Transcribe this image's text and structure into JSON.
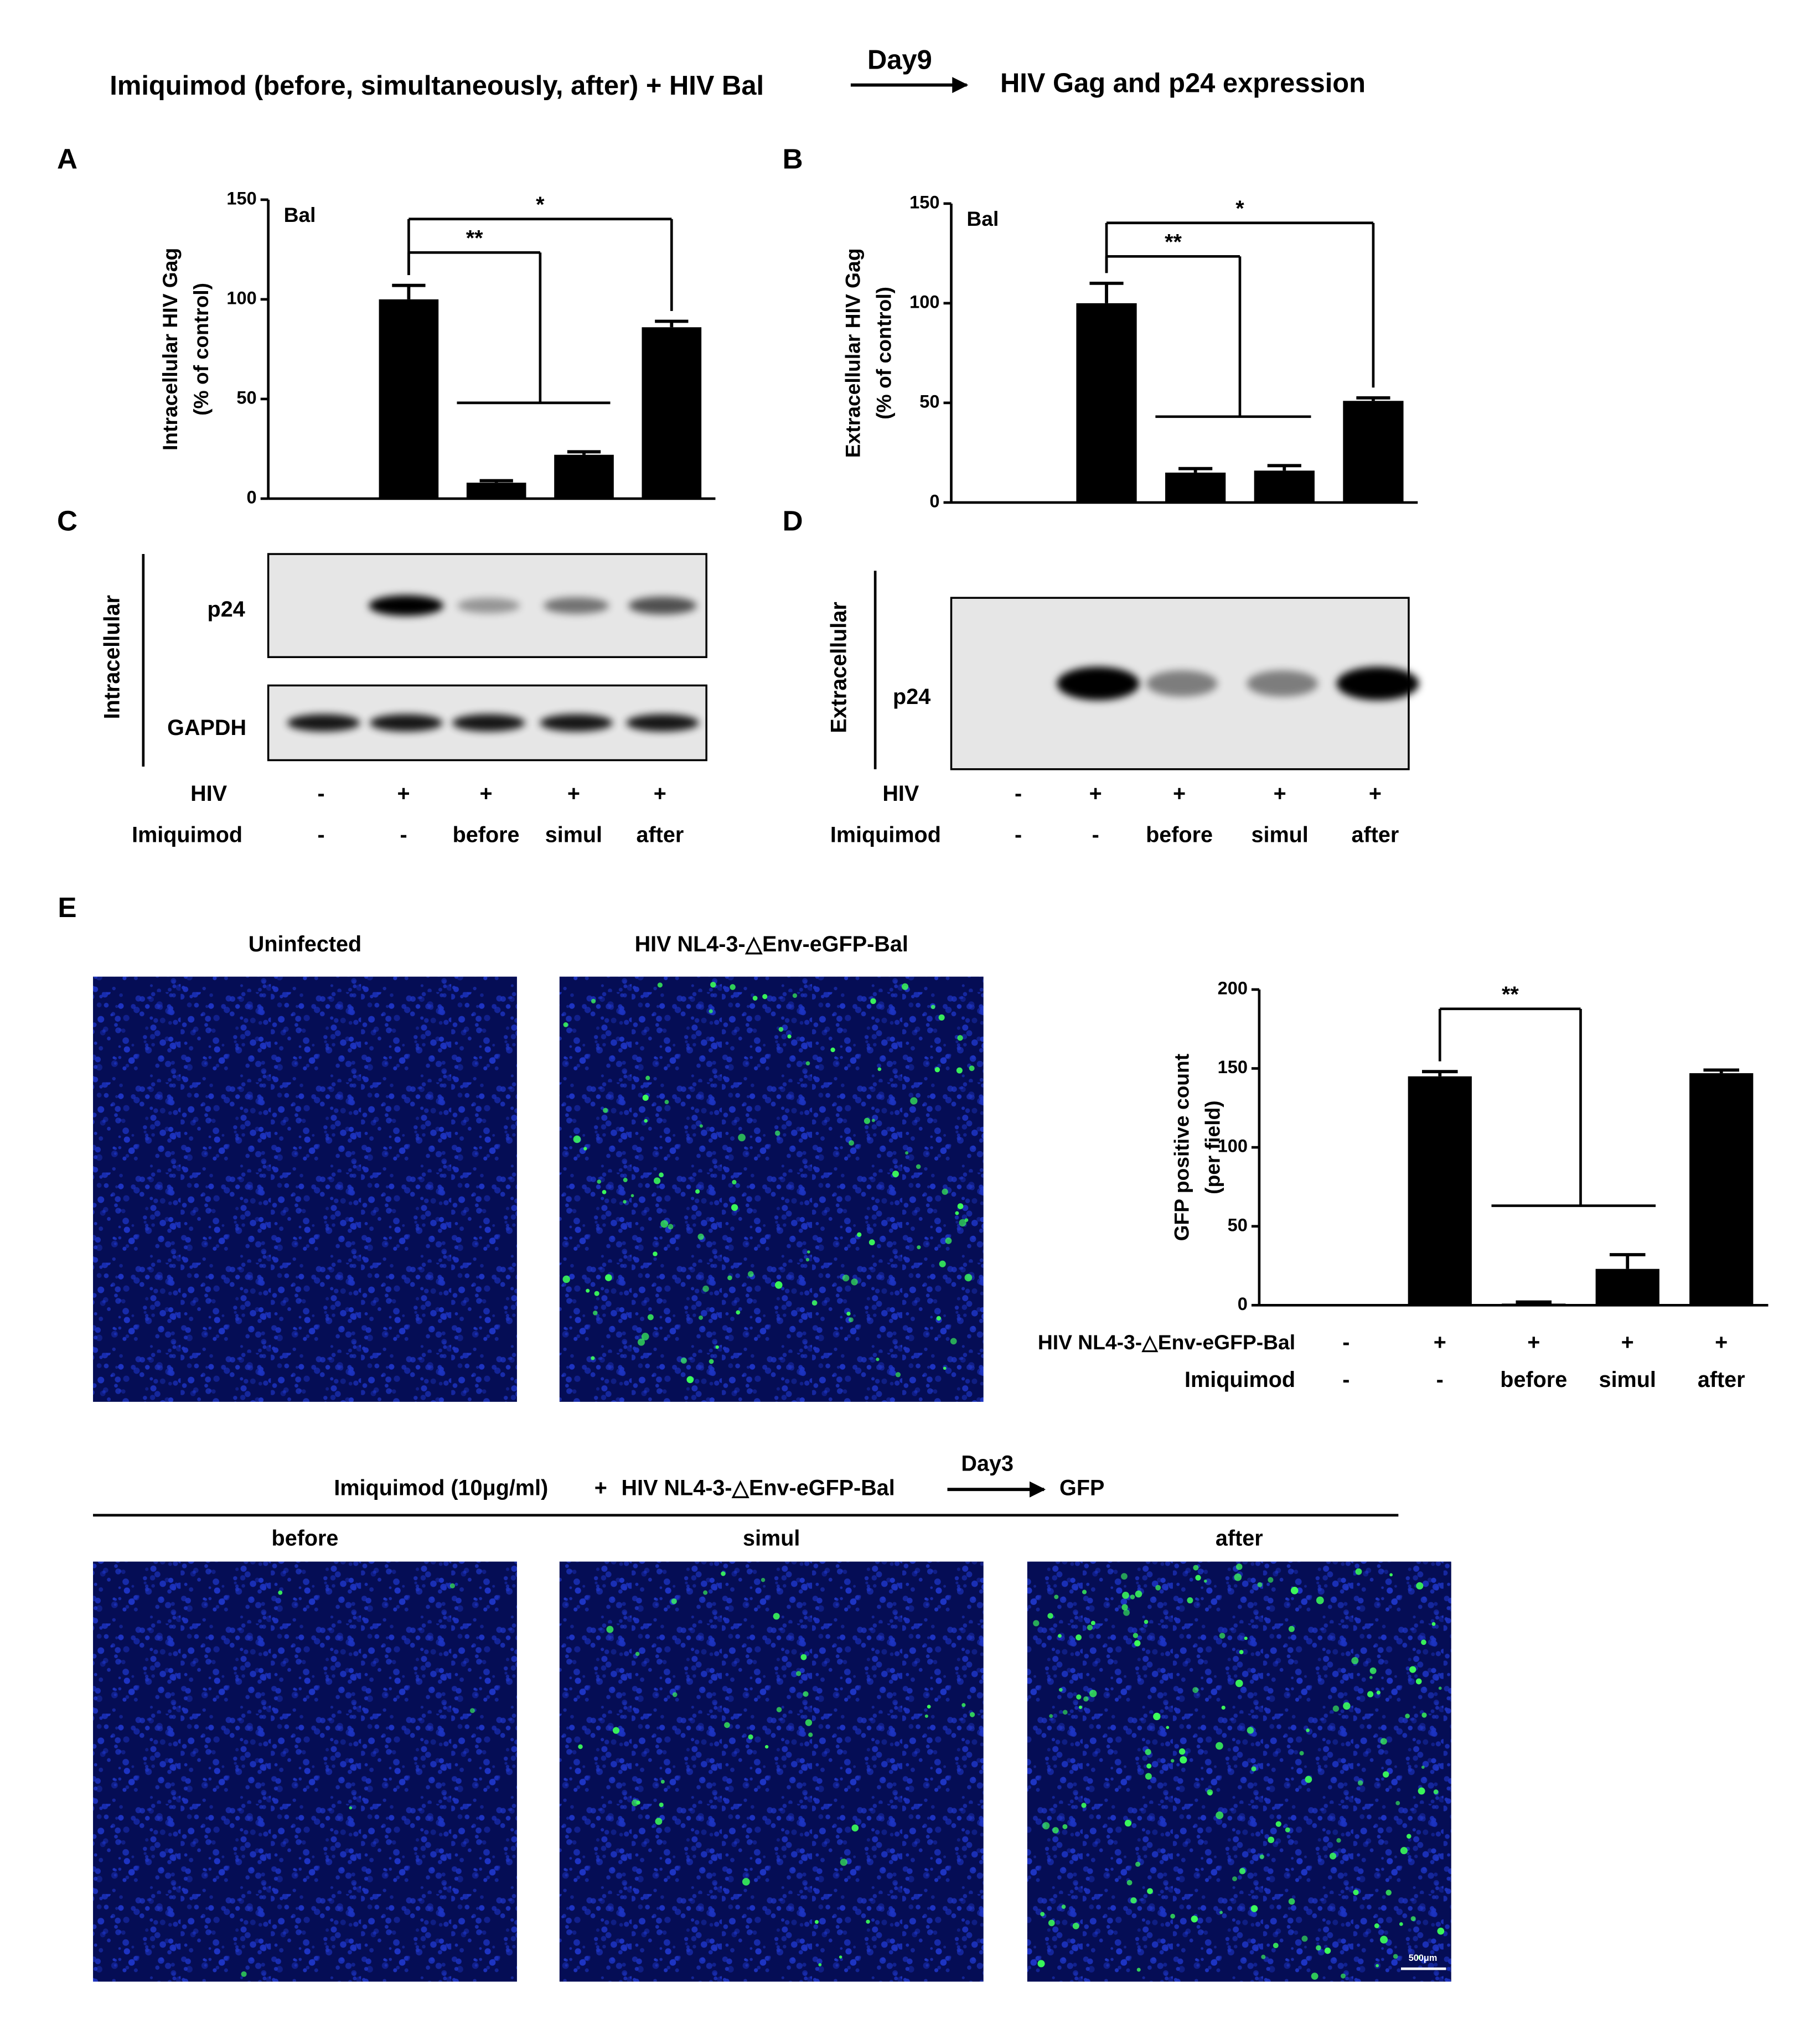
{
  "header": {
    "left": "Imiquimod (before, simultaneously, after) + HIV Bal",
    "arrow_label": "Day9",
    "right": "HIV Gag and p24 expression"
  },
  "chart_data": [
    {
      "type": "bar",
      "panel": "A",
      "inset_label": "Bal",
      "ylabel": [
        "Intracellular HIV Gag",
        "(% of control)"
      ],
      "categories": [
        null,
        null,
        null,
        null,
        null
      ],
      "values": [
        0,
        100,
        8,
        22,
        86
      ],
      "errors": [
        0,
        7,
        1,
        1.5,
        3
      ],
      "color": "#000000",
      "ylim": [
        0,
        150
      ],
      "yticks": [
        0,
        50,
        100,
        150
      ],
      "annotations": [
        {
          "text": "**",
          "from": 1,
          "to": [
            2,
            3
          ]
        },
        {
          "text": "*",
          "from": 1,
          "to": [
            4
          ]
        }
      ]
    },
    {
      "type": "bar",
      "panel": "B",
      "inset_label": "Bal",
      "ylabel": [
        "Extracellular HIV Gag",
        "(% of control)"
      ],
      "categories": [
        null,
        null,
        null,
        null,
        null
      ],
      "values": [
        0,
        100,
        15,
        16,
        51
      ],
      "errors": [
        0,
        10,
        2,
        2.5,
        1.5
      ],
      "color": "#000000",
      "ylim": [
        0,
        150
      ],
      "yticks": [
        0,
        50,
        100,
        150
      ],
      "annotations": [
        {
          "text": "**",
          "from": 1,
          "to": [
            2,
            3
          ]
        },
        {
          "text": "*",
          "from": 1,
          "to": [
            4
          ]
        }
      ]
    },
    {
      "type": "bar",
      "panel": "E",
      "ylabel": [
        "GFP positive count",
        "(per field)"
      ],
      "categories": [
        null,
        null,
        null,
        null,
        null
      ],
      "values": [
        0,
        145,
        1,
        23,
        147
      ],
      "errors": [
        0,
        3,
        1,
        9,
        2
      ],
      "color": "#000000",
      "ylim": [
        0,
        200
      ],
      "yticks": [
        0,
        50,
        100,
        150,
        200
      ],
      "annotations": [
        {
          "text": "**",
          "from": 1,
          "to": [
            2,
            3
          ]
        }
      ],
      "conditions": [
        {
          "label": "HIV NL4-3-△Env-eGFP-Bal",
          "values": [
            "-",
            "+",
            "+",
            "+",
            "+"
          ]
        },
        {
          "label": "Imiquimod",
          "values": [
            "-",
            "-",
            "before",
            "simul",
            "after"
          ]
        }
      ]
    }
  ],
  "blots": [
    {
      "panel": "C",
      "side_label": "Intracellular",
      "rows": [
        "p24",
        "GAPDH"
      ],
      "conditions": [
        {
          "label": "HIV",
          "values": [
            "-",
            "+",
            "+",
            "+",
            "+"
          ]
        },
        {
          "label": "Imiquimod",
          "values": [
            "-",
            "-",
            "before",
            "simul",
            "after"
          ]
        }
      ]
    },
    {
      "panel": "D",
      "side_label": "Extracellular",
      "rows": [
        "p24"
      ],
      "conditions": [
        {
          "label": "HIV",
          "values": [
            "-",
            "+",
            "+",
            "+",
            "+"
          ]
        },
        {
          "label": "Imiquimod",
          "values": [
            "-",
            "-",
            "before",
            "simul",
            "after"
          ]
        }
      ]
    }
  ],
  "images": {
    "top": [
      "Uninfected",
      "HIV NL4-3-△Env-eGFP-Bal"
    ],
    "protocol": {
      "treatment": "Imiquimod (10μg/ml)",
      "plus": "+",
      "virus": "HIV NL4-3-△Env-eGFP-Bal",
      "arrow_label": "Day3",
      "readout": "GFP"
    },
    "bottom": [
      "before",
      "simul",
      "after"
    ],
    "scale_bar": "500μm"
  }
}
